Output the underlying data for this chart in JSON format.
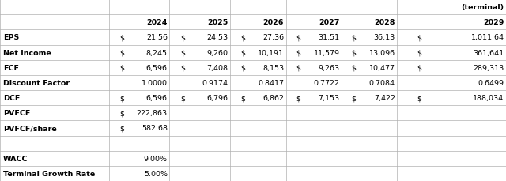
{
  "figsize": [
    6.4,
    2.3
  ],
  "dpi": 100,
  "bg_color": "#ffffff",
  "grid_color": "#b0b0b0",
  "font_size": 6.8,
  "label_font_size": 6.8,
  "terminal_label": "(terminal)",
  "years": [
    "2024",
    "2025",
    "2026",
    "2027",
    "2028",
    "2029"
  ],
  "col_bounds": [
    0.0,
    0.215,
    0.335,
    0.455,
    0.565,
    0.675,
    0.785,
    1.0
  ],
  "total_rows": 12,
  "rows": [
    {
      "label": "EPS",
      "dollar": true,
      "values": [
        "21.56",
        "24.53",
        "27.36",
        "31.51",
        "36.13",
        "1,011.64"
      ]
    },
    {
      "label": "Net Income",
      "dollar": true,
      "values": [
        "8,245",
        "9,260",
        "10,191",
        "11,579",
        "13,096",
        "361,641"
      ]
    },
    {
      "label": "FCF",
      "dollar": true,
      "values": [
        "6,596",
        "7,408",
        "8,153",
        "9,263",
        "10,477",
        "289,313"
      ]
    },
    {
      "label": "Discount Factor",
      "dollar": false,
      "values": [
        "1.0000",
        "0.9174",
        "0.8417",
        "0.7722",
        "0.7084",
        "0.6499"
      ]
    },
    {
      "label": "DCF",
      "dollar": true,
      "values": [
        "6,596",
        "6,796",
        "6,862",
        "7,153",
        "7,422",
        "188,034"
      ]
    },
    {
      "label": "PVFCF",
      "dollar": true,
      "values": [
        "222,863",
        "",
        "",
        "",
        "",
        ""
      ]
    },
    {
      "label": "PVFCF/share",
      "dollar": true,
      "values": [
        "582.68",
        "",
        "",
        "",
        "",
        ""
      ]
    }
  ],
  "extra_rows": [
    {
      "label": "WACC",
      "value": "9.00%"
    },
    {
      "label": "Terminal Growth Rate",
      "value": "5.00%"
    }
  ]
}
